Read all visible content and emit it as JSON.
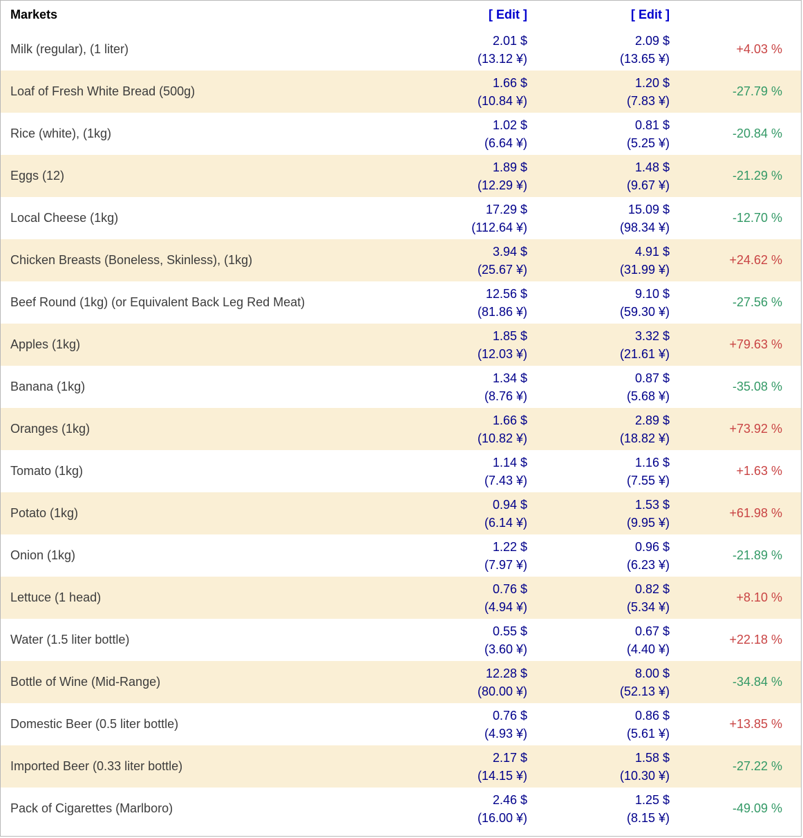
{
  "header": {
    "title": "Markets",
    "edit_label_1": "[ Edit ]",
    "edit_label_2": "[ Edit ]"
  },
  "colors": {
    "row_alt_bg": "#FAEFD5",
    "price_color": "#00008B",
    "edit_color": "#0000CD",
    "positive_color": "#C94444",
    "negative_color": "#339966",
    "item_color": "#3C3C3C"
  },
  "rows": [
    {
      "item": "Milk (regular), (1 liter)",
      "price1": "2.01 $",
      "price1_local": "(13.12 ¥)",
      "price2": "2.09 $",
      "price2_local": "(13.65 ¥)",
      "change": "+4.03 %",
      "direction": "up"
    },
    {
      "item": "Loaf of Fresh White Bread (500g)",
      "price1": "1.66 $",
      "price1_local": "(10.84 ¥)",
      "price2": "1.20 $",
      "price2_local": "(7.83 ¥)",
      "change": "-27.79 %",
      "direction": "down"
    },
    {
      "item": "Rice (white), (1kg)",
      "price1": "1.02 $",
      "price1_local": "(6.64 ¥)",
      "price2": "0.81 $",
      "price2_local": "(5.25 ¥)",
      "change": "-20.84 %",
      "direction": "down"
    },
    {
      "item": "Eggs (12)",
      "price1": "1.89 $",
      "price1_local": "(12.29 ¥)",
      "price2": "1.48 $",
      "price2_local": "(9.67 ¥)",
      "change": "-21.29 %",
      "direction": "down"
    },
    {
      "item": "Local Cheese (1kg)",
      "price1": "17.29 $",
      "price1_local": "(112.64 ¥)",
      "price2": "15.09 $",
      "price2_local": "(98.34 ¥)",
      "change": "-12.70 %",
      "direction": "down"
    },
    {
      "item": "Chicken Breasts (Boneless, Skinless), (1kg)",
      "price1": "3.94 $",
      "price1_local": "(25.67 ¥)",
      "price2": "4.91 $",
      "price2_local": "(31.99 ¥)",
      "change": "+24.62 %",
      "direction": "up"
    },
    {
      "item": "Beef Round (1kg) (or Equivalent Back Leg Red Meat)",
      "price1": "12.56 $",
      "price1_local": "(81.86 ¥)",
      "price2": "9.10 $",
      "price2_local": "(59.30 ¥)",
      "change": "-27.56 %",
      "direction": "down"
    },
    {
      "item": "Apples (1kg)",
      "price1": "1.85 $",
      "price1_local": "(12.03 ¥)",
      "price2": "3.32 $",
      "price2_local": "(21.61 ¥)",
      "change": "+79.63 %",
      "direction": "up"
    },
    {
      "item": "Banana (1kg)",
      "price1": "1.34 $",
      "price1_local": "(8.76 ¥)",
      "price2": "0.87 $",
      "price2_local": "(5.68 ¥)",
      "change": "-35.08 %",
      "direction": "down"
    },
    {
      "item": "Oranges (1kg)",
      "price1": "1.66 $",
      "price1_local": "(10.82 ¥)",
      "price2": "2.89 $",
      "price2_local": "(18.82 ¥)",
      "change": "+73.92 %",
      "direction": "up"
    },
    {
      "item": "Tomato (1kg)",
      "price1": "1.14 $",
      "price1_local": "(7.43 ¥)",
      "price2": "1.16 $",
      "price2_local": "(7.55 ¥)",
      "change": "+1.63 %",
      "direction": "up"
    },
    {
      "item": "Potato (1kg)",
      "price1": "0.94 $",
      "price1_local": "(6.14 ¥)",
      "price2": "1.53 $",
      "price2_local": "(9.95 ¥)",
      "change": "+61.98 %",
      "direction": "up"
    },
    {
      "item": "Onion (1kg)",
      "price1": "1.22 $",
      "price1_local": "(7.97 ¥)",
      "price2": "0.96 $",
      "price2_local": "(6.23 ¥)",
      "change": "-21.89 %",
      "direction": "down"
    },
    {
      "item": "Lettuce (1 head)",
      "price1": "0.76 $",
      "price1_local": "(4.94 ¥)",
      "price2": "0.82 $",
      "price2_local": "(5.34 ¥)",
      "change": "+8.10 %",
      "direction": "up"
    },
    {
      "item": "Water (1.5 liter bottle)",
      "price1": "0.55 $",
      "price1_local": "(3.60 ¥)",
      "price2": "0.67 $",
      "price2_local": "(4.40 ¥)",
      "change": "+22.18 %",
      "direction": "up"
    },
    {
      "item": "Bottle of Wine (Mid-Range)",
      "price1": "12.28 $",
      "price1_local": "(80.00 ¥)",
      "price2": "8.00 $",
      "price2_local": "(52.13 ¥)",
      "change": "-34.84 %",
      "direction": "down"
    },
    {
      "item": "Domestic Beer (0.5 liter bottle)",
      "price1": "0.76 $",
      "price1_local": "(4.93 ¥)",
      "price2": "0.86 $",
      "price2_local": "(5.61 ¥)",
      "change": "+13.85 %",
      "direction": "up"
    },
    {
      "item": "Imported Beer (0.33 liter bottle)",
      "price1": "2.17 $",
      "price1_local": "(14.15 ¥)",
      "price2": "1.58 $",
      "price2_local": "(10.30 ¥)",
      "change": "-27.22 %",
      "direction": "down"
    },
    {
      "item": "Pack of Cigarettes (Marlboro)",
      "price1": "2.46 $",
      "price1_local": "(16.00 ¥)",
      "price2": "1.25 $",
      "price2_local": "(8.15 ¥)",
      "change": "-49.09 %",
      "direction": "down"
    }
  ]
}
